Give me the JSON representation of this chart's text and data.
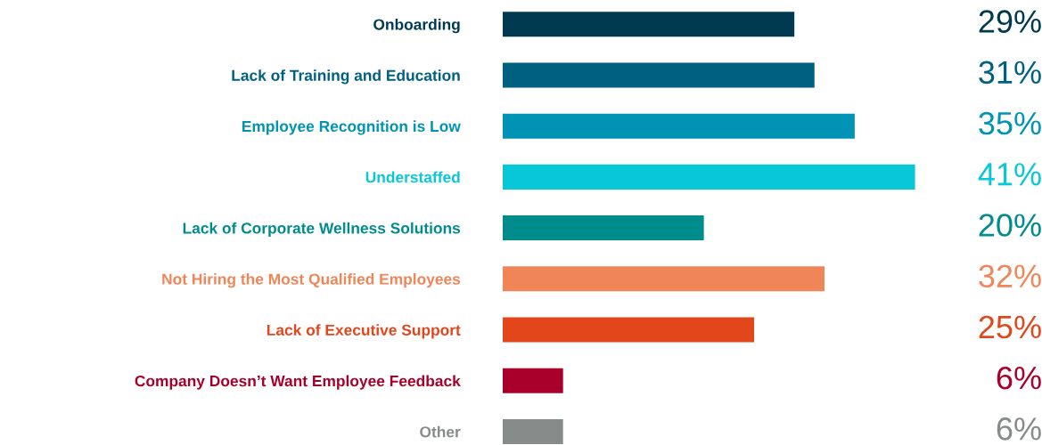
{
  "chart_data": {
    "type": "bar",
    "orientation": "horizontal",
    "categories": [
      "Onboarding",
      "Lack of Training and Education",
      "Employee Recognition is Low",
      "Understaffed",
      "Lack of Corporate Wellness Solutions",
      "Not Hiring the Most Qualified Employees",
      "Lack of Executive Support",
      "Company Doesn’t Want Employee Feedback",
      "Other"
    ],
    "values": [
      29,
      31,
      35,
      41,
      20,
      32,
      25,
      6,
      6
    ],
    "colors": [
      "#003a50",
      "#00607f",
      "#0093b5",
      "#08c8d8",
      "#008c8c",
      "#f08558",
      "#e4461c",
      "#a8002a",
      "#878b89"
    ],
    "value_labels": [
      "29%",
      "31%",
      "35%",
      "41%",
      "20%",
      "32%",
      "25%",
      "6%",
      "6%"
    ],
    "tick_labels": "y",
    "grid": false,
    "legend": false
  }
}
